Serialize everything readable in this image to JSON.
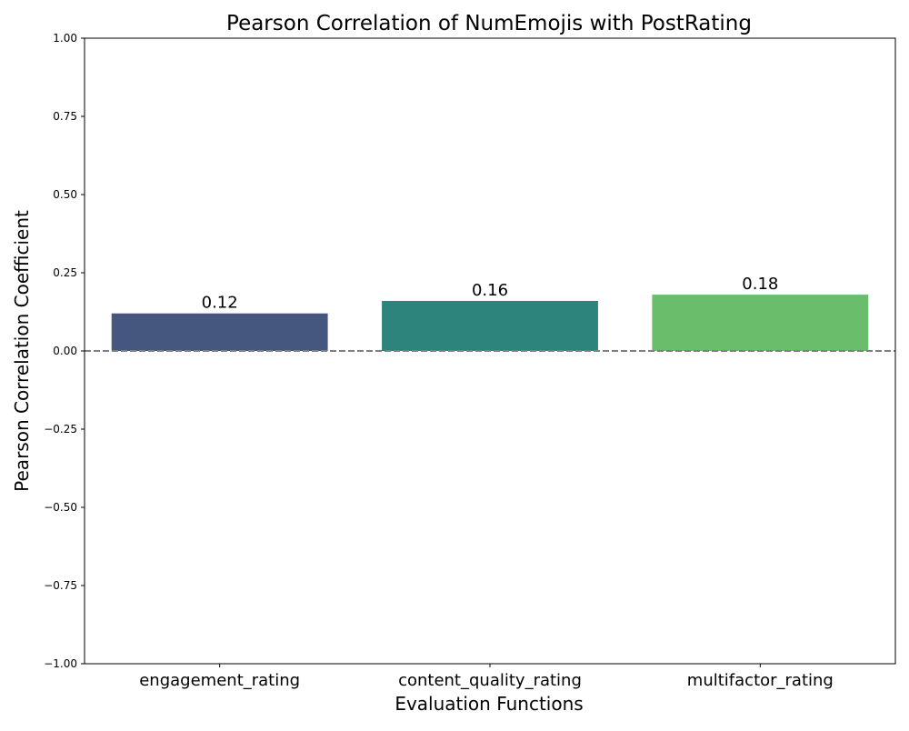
{
  "chart_data": {
    "type": "bar",
    "title": "Pearson Correlation of NumEmojis with PostRating",
    "xlabel": "Evaluation Functions",
    "ylabel": "Pearson Correlation Coefficient",
    "categories": [
      "engagement_rating",
      "content_quality_rating",
      "multifactor_rating"
    ],
    "values": [
      0.12,
      0.16,
      0.18
    ],
    "value_labels": [
      "0.12",
      "0.16",
      "0.18"
    ],
    "colors": [
      "#46577f",
      "#2d847d",
      "#6abd6b"
    ],
    "ylim": [
      -1.0,
      1.0
    ],
    "yticks": [
      -1.0,
      -0.75,
      -0.5,
      -0.25,
      0.0,
      0.25,
      0.5,
      0.75,
      1.0
    ],
    "ytick_labels": [
      "−1.00",
      "−0.75",
      "−0.50",
      "−0.25",
      "0.00",
      "0.25",
      "0.50",
      "0.75",
      "1.00"
    ],
    "reference_line": {
      "y": 0,
      "style": "dashed",
      "color": "#808080"
    },
    "grid": false,
    "legend": "none"
  }
}
